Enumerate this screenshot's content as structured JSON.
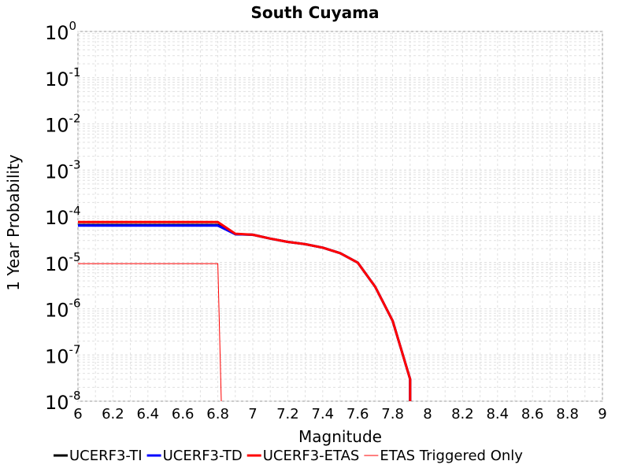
{
  "chart_data": {
    "type": "line",
    "title": "South Cuyama",
    "xlabel": "Magnitude",
    "ylabel": "1 Year Probability",
    "xlim": [
      6,
      9
    ],
    "ylim": [
      1e-08,
      1
    ],
    "yscale": "log",
    "grid": true,
    "legend_position": "bottom",
    "x_ticks": [
      "6",
      "6.2",
      "6.4",
      "6.6",
      "6.8",
      "7",
      "7.2",
      "7.4",
      "7.6",
      "7.8",
      "8",
      "8.2",
      "8.4",
      "8.6",
      "8.8",
      "9"
    ],
    "y_ticks": [
      {
        "value": 1.0,
        "base": "10",
        "exp": "0"
      },
      {
        "value": 0.1,
        "base": "10",
        "exp": "-1"
      },
      {
        "value": 0.01,
        "base": "10",
        "exp": "-2"
      },
      {
        "value": 0.001,
        "base": "10",
        "exp": "-3"
      },
      {
        "value": 0.0001,
        "base": "10",
        "exp": "-4"
      },
      {
        "value": 1e-05,
        "base": "10",
        "exp": "-5"
      },
      {
        "value": 1e-06,
        "base": "10",
        "exp": "-6"
      },
      {
        "value": 1e-07,
        "base": "10",
        "exp": "-7"
      },
      {
        "value": 1e-08,
        "base": "10",
        "exp": "-8"
      }
    ],
    "series": [
      {
        "name": "UCERF3-TI",
        "color": "#000000",
        "width": 3,
        "x": [
          6.0,
          6.8,
          6.9,
          7.0,
          7.1,
          7.2,
          7.3,
          7.4,
          7.5,
          7.6,
          7.7,
          7.8,
          7.9,
          7.9
        ],
        "y": [
          6.5e-05,
          6.5e-05,
          4.1e-05,
          4e-05,
          3.3e-05,
          2.8e-05,
          2.5e-05,
          2.1e-05,
          1.6e-05,
          1e-05,
          3e-06,
          5.5e-07,
          3e-08,
          1e-08
        ]
      },
      {
        "name": "UCERF3-TD",
        "color": "#0000ff",
        "width": 3,
        "x": [
          6.0,
          6.8,
          6.9,
          7.0,
          7.1,
          7.2,
          7.3,
          7.4,
          7.5,
          7.6,
          7.7,
          7.8,
          7.9,
          7.9
        ],
        "y": [
          6.3e-05,
          6.3e-05,
          4.1e-05,
          4e-05,
          3.3e-05,
          2.8e-05,
          2.5e-05,
          2.1e-05,
          1.6e-05,
          1e-05,
          3e-06,
          5.5e-07,
          3e-08,
          1e-08
        ]
      },
      {
        "name": "UCERF3-ETAS",
        "color": "#ff0000",
        "width": 3,
        "x": [
          6.0,
          6.8,
          6.9,
          7.0,
          7.1,
          7.2,
          7.3,
          7.4,
          7.5,
          7.6,
          7.7,
          7.8,
          7.9,
          7.9
        ],
        "y": [
          7.5e-05,
          7.5e-05,
          4.2e-05,
          4e-05,
          3.3e-05,
          2.8e-05,
          2.5e-05,
          2.1e-05,
          1.6e-05,
          1e-05,
          3e-06,
          5.5e-07,
          3e-08,
          1e-08
        ]
      },
      {
        "name": "ETAS Triggered Only",
        "color": "#ff0000",
        "width": 1,
        "x": [
          6.0,
          6.8,
          6.82
        ],
        "y": [
          9.5e-06,
          9.5e-06,
          1e-08
        ]
      }
    ]
  }
}
